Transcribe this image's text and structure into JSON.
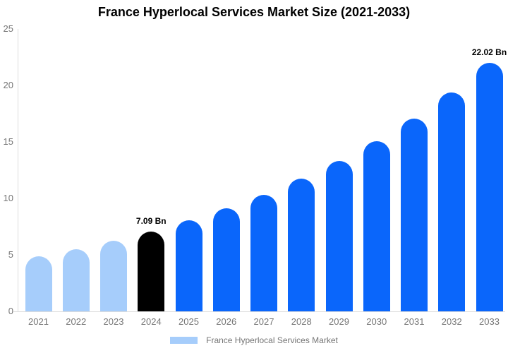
{
  "title": "France Hyperlocal Services Market Size (2021-2033)",
  "legend": {
    "label": "France Hyperlocal Services Market"
  },
  "colors": {
    "light_blue": "#a6cdfb",
    "blue": "#0a66fb",
    "black": "#000000",
    "axis_line": "#dddddd",
    "tick_text": "#757575",
    "annotation_text": "#000000",
    "background": "#ffffff"
  },
  "chart_data": {
    "type": "bar",
    "title": "France Hyperlocal Services Market Size (2021-2033)",
    "categories": [
      "2021",
      "2022",
      "2023",
      "2024",
      "2025",
      "2026",
      "2027",
      "2028",
      "2029",
      "2030",
      "2031",
      "2032",
      "2033"
    ],
    "values": [
      4.86,
      5.51,
      6.25,
      7.09,
      8.04,
      9.12,
      10.34,
      11.72,
      13.29,
      15.07,
      17.09,
      19.38,
      22.02
    ],
    "unit": "Bn",
    "bar_colors": [
      "#a6cdfb",
      "#a6cdfb",
      "#a6cdfb",
      "#000000",
      "#0a66fb",
      "#0a66fb",
      "#0a66fb",
      "#0a66fb",
      "#0a66fb",
      "#0a66fb",
      "#0a66fb",
      "#0a66fb",
      "#0a66fb"
    ],
    "annotations": [
      {
        "index": 3,
        "text": "7.09 Bn"
      },
      {
        "index": 12,
        "text": "22.02 Bn"
      }
    ],
    "xlabel": "",
    "ylabel": "",
    "ylim": [
      0,
      25
    ],
    "yticks": [
      0,
      5,
      10,
      15,
      20,
      25
    ],
    "grid": false,
    "legend": "France Hyperlocal Services Market",
    "legend_position": "bottom",
    "bar_cap_style": "rounded-top"
  }
}
